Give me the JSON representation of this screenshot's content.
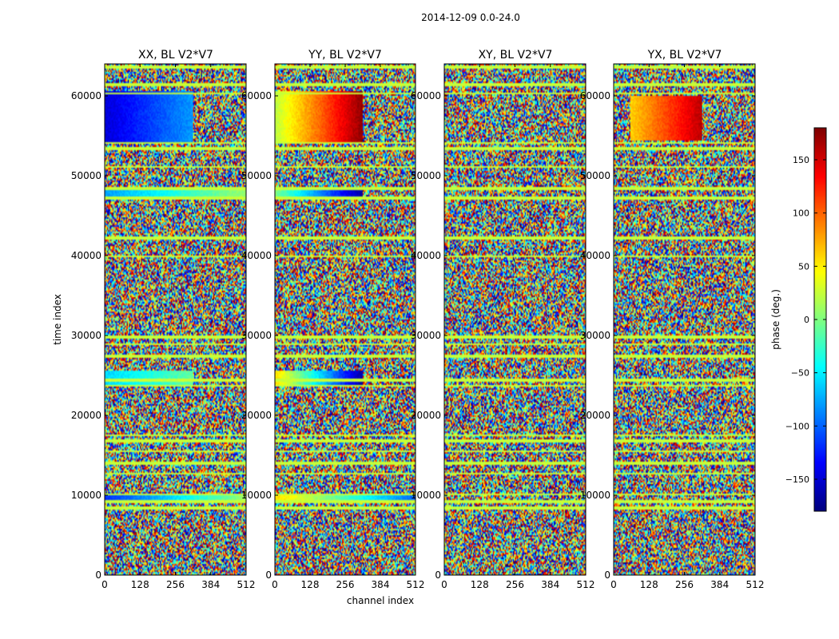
{
  "figure": {
    "suptitle": "2014-12-09 0.0-24.0"
  },
  "chart_data": {
    "type": "heatmap",
    "title": "2014-12-09 0.0-24.0",
    "xlabel": "channel index",
    "ylabel": "time index",
    "xlim": [
      0,
      512
    ],
    "ylim": [
      0,
      64000
    ],
    "xticks": [
      0,
      128,
      256,
      384,
      512
    ],
    "yticks": [
      0,
      10000,
      20000,
      30000,
      40000,
      50000,
      60000
    ],
    "panels": [
      {
        "title": "XX, BL V2*V7",
        "pol": "XX"
      },
      {
        "title": "YY, BL V2*V7",
        "pol": "YY"
      },
      {
        "title": "XY, BL V2*V7",
        "pol": "XY"
      },
      {
        "title": "YX, BL V2*V7",
        "pol": "YX"
      }
    ],
    "colorbar": {
      "label": "phase (deg.)",
      "range": [
        -180,
        180
      ],
      "ticks": [
        -150,
        -100,
        -50,
        0,
        50,
        100,
        150
      ],
      "tick_labels": [
        "−150",
        "−100",
        "−50",
        "0",
        "50",
        "100",
        "150"
      ],
      "colormap": "jet"
    },
    "flagged_time_rows": [
      [
        63500,
        63700
      ],
      [
        61300,
        61500
      ],
      [
        60200,
        60400
      ],
      [
        54000,
        54200
      ],
      [
        53300,
        53500
      ],
      [
        51000,
        51200
      ],
      [
        48300,
        48500
      ],
      [
        47100,
        47300
      ],
      [
        42100,
        42300
      ],
      [
        39800,
        40000
      ],
      [
        29700,
        29900
      ],
      [
        28800,
        29000
      ],
      [
        27300,
        27500
      ],
      [
        24300,
        24500
      ],
      [
        23600,
        23800
      ],
      [
        17400,
        17600
      ],
      [
        16700,
        16900
      ],
      [
        15400,
        15600
      ],
      [
        13900,
        14100
      ],
      [
        12600,
        12800
      ],
      [
        10000,
        10200
      ],
      [
        9100,
        9300
      ],
      [
        8300,
        8500
      ]
    ],
    "coherent_phase_blocks": [
      {
        "pol": "XX",
        "time": [
          54000,
          60500
        ],
        "channels": [
          0,
          320
        ],
        "phase_start": -150,
        "phase_end": -80
      },
      {
        "pol": "XX",
        "time": [
          47300,
          48200
        ],
        "channels": [
          0,
          512
        ],
        "phase_start": -80,
        "phase_end": 10
      },
      {
        "pol": "XX",
        "time": [
          23800,
          25500
        ],
        "channels": [
          0,
          320
        ],
        "phase_start": -60,
        "phase_end": -10
      },
      {
        "pol": "XX",
        "time": [
          9300,
          10000
        ],
        "channels": [
          0,
          512
        ],
        "phase_start": -120,
        "phase_end": 10
      },
      {
        "pol": "YY",
        "time": [
          54000,
          60500
        ],
        "channels": [
          0,
          320
        ],
        "phase_start": 20,
        "phase_end": 175
      },
      {
        "pol": "YY",
        "time": [
          47300,
          48200
        ],
        "channels": [
          0,
          320
        ],
        "phase_start": 0,
        "phase_end": -170
      },
      {
        "pol": "YY",
        "time": [
          23800,
          25500
        ],
        "channels": [
          0,
          320
        ],
        "phase_start": 60,
        "phase_end": -170
      },
      {
        "pol": "YY",
        "time": [
          9300,
          10000
        ],
        "channels": [
          0,
          512
        ],
        "phase_start": 60,
        "phase_end": -100
      },
      {
        "pol": "YX",
        "time": [
          54500,
          60000
        ],
        "channels": [
          60,
          320
        ],
        "phase_start": 60,
        "phase_end": 160
      }
    ]
  }
}
